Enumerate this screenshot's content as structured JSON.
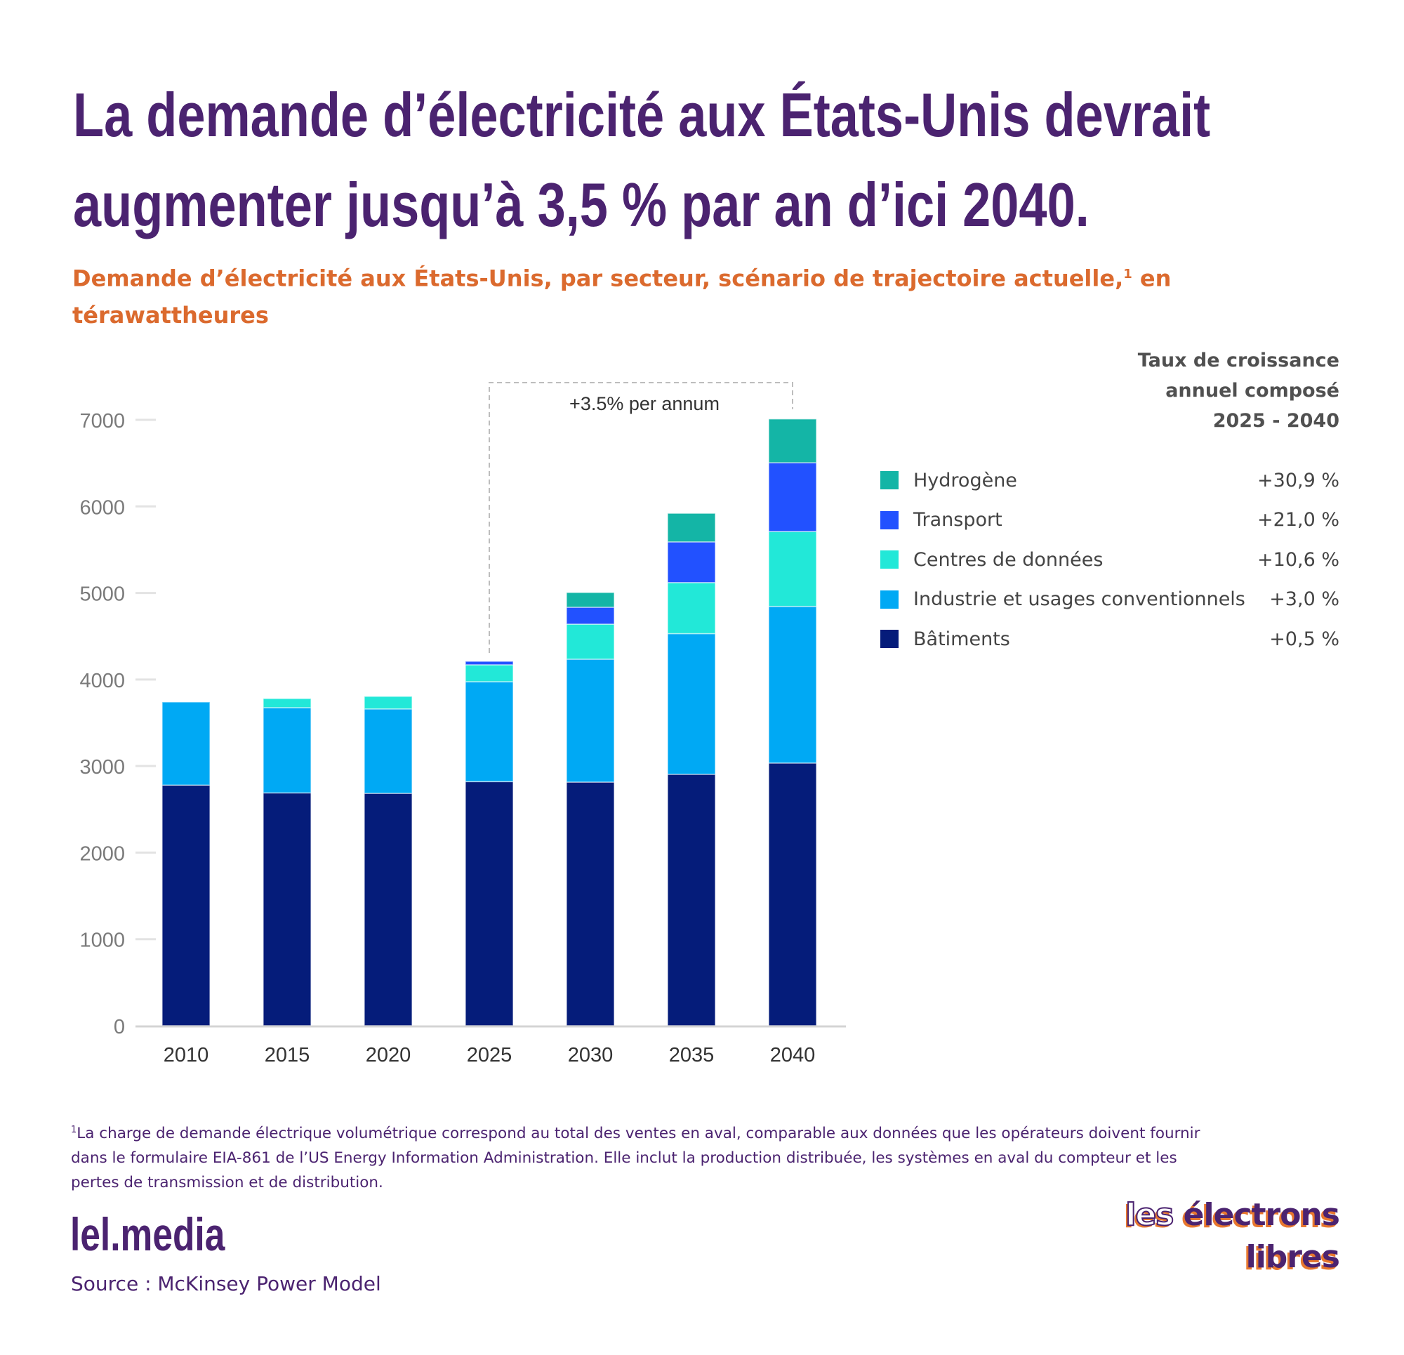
{
  "title": {
    "line1": "La demande d’électricité aux États-Unis devrait",
    "line2": "augmenter jusqu’à 3,5 % par an d’ici 2040."
  },
  "subtitle": {
    "text": "Demande d’électricité aux États-Unis, par secteur, scénario de trajectoire actuelle,",
    "footnote_mark": "1",
    "text_cont": " en",
    "line2": "térawattheures"
  },
  "legend": {
    "header": [
      "Taux de croissance",
      "annuel composé",
      "2025 - 2040"
    ],
    "items": [
      {
        "key": "hydrogen",
        "label": "Hydrogène",
        "value": "+30,9 %",
        "color": "#14B5A6"
      },
      {
        "key": "transport",
        "label": "Transport",
        "value": "+21,0 %",
        "color": "#2251FF"
      },
      {
        "key": "datacenters",
        "label": "Centres de données",
        "value": "+10,6 %",
        "color": "#22E8D8"
      },
      {
        "key": "industry",
        "label": "Industrie et usages conventionnels",
        "value": "+3,0 %",
        "color": "#00A9F4"
      },
      {
        "key": "buildings",
        "label": "Bâtiments",
        "value": "+0,5 %",
        "color": "#051C7A"
      }
    ]
  },
  "chart_data": {
    "type": "bar",
    "stacked": true,
    "title": "Demande d’électricité aux États-Unis, par secteur, scénario de trajectoire actuelle, en térawattheures",
    "xlabel": "",
    "ylabel": "",
    "ylim": [
      0,
      7000
    ],
    "yticks": [
      0,
      1000,
      2000,
      3000,
      4000,
      5000,
      6000,
      7000
    ],
    "grid": false,
    "legend_position": "right",
    "categories": [
      "2010",
      "2015",
      "2020",
      "2025",
      "2030",
      "2035",
      "2040"
    ],
    "series": [
      {
        "name": "Bâtiments",
        "key": "buildings",
        "color": "#051C7A",
        "values": [
          2780,
          2690,
          2685,
          2820,
          2815,
          2905,
          3035
        ]
      },
      {
        "name": "Industrie et usages conventionnels",
        "key": "industry",
        "color": "#00A9F4",
        "values": [
          960,
          985,
          975,
          1155,
          1420,
          1625,
          1810
        ]
      },
      {
        "name": "Centres de données",
        "key": "datacenters",
        "color": "#22E8D8",
        "values": [
          0,
          105,
          145,
          195,
          405,
          590,
          865
        ]
      },
      {
        "name": "Transport",
        "key": "transport",
        "color": "#2251FF",
        "values": [
          0,
          0,
          0,
          40,
          195,
          470,
          795
        ]
      },
      {
        "name": "Hydrogène",
        "key": "hydrogen",
        "color": "#14B5A6",
        "values": [
          0,
          0,
          0,
          0,
          170,
          330,
          505
        ]
      }
    ],
    "annotation": {
      "text": "+3.5% per annum",
      "from": "2025",
      "to": "2040"
    }
  },
  "footnote": {
    "mark": "1",
    "lines": [
      "La charge de demande électrique volumétrique correspond au total des ventes en aval, comparable aux données que les opérateurs doivent fournir",
      "dans le formulaire EIA-861 de l’US Energy Information Administration. Elle inclut la production distribuée, les systèmes en aval du compteur et les",
      "pertes de transmission et de distribution."
    ]
  },
  "brand": {
    "site": "lel.media",
    "source": "Source : McKinsey Power Model",
    "logo_line1_a": "les",
    "logo_line1_b": " électrons",
    "logo_line2": "libres"
  }
}
